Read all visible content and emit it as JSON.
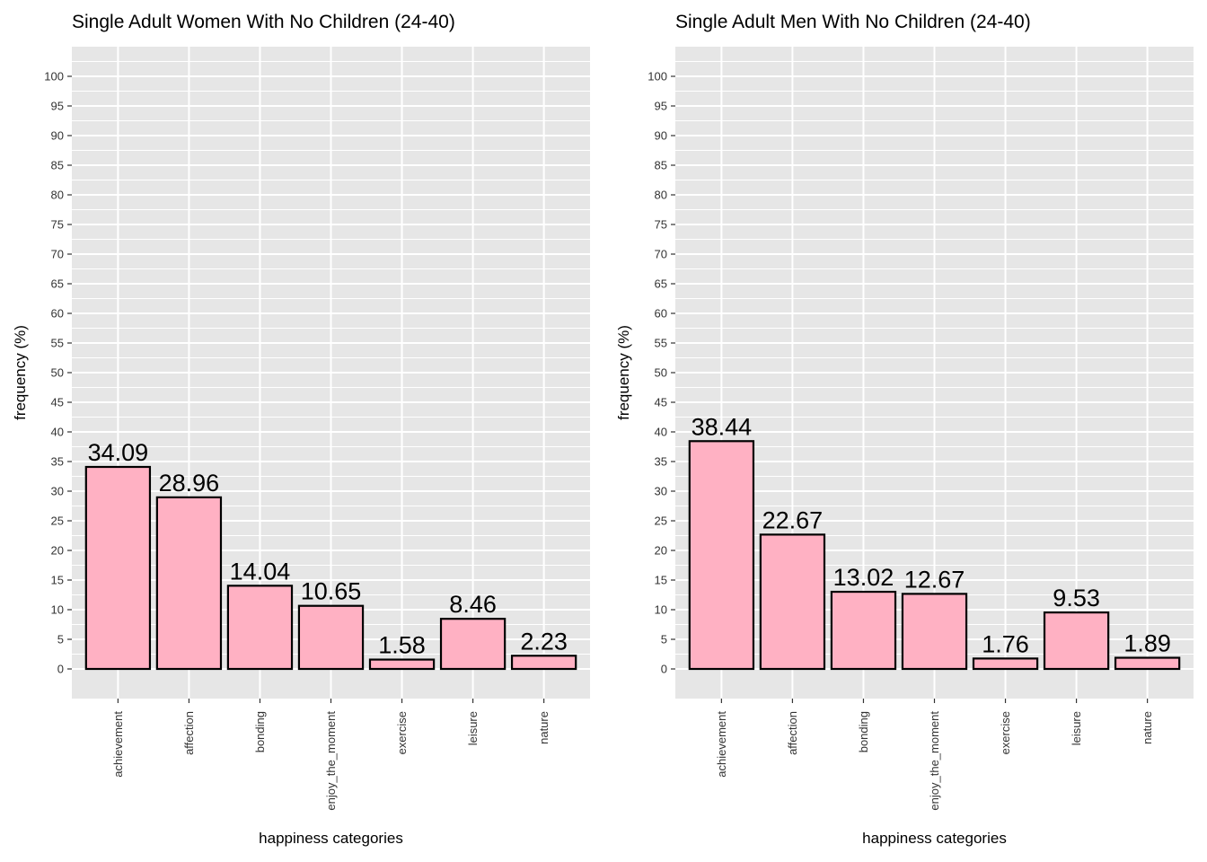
{
  "chart_data": [
    {
      "type": "bar",
      "title": "Single Adult Women With No Children (24-40)",
      "xlabel": "happiness categories",
      "ylabel": "frequency (%)",
      "categories": [
        "achievement",
        "affection",
        "bonding",
        "enjoy_the_moment",
        "exercise",
        "leisure",
        "nature"
      ],
      "values": [
        34.09,
        28.96,
        14.04,
        10.65,
        1.58,
        8.46,
        2.23
      ],
      "value_labels": [
        "34.09",
        "28.96",
        "14.04",
        "10.65",
        "1.58",
        "8.46",
        "2.23"
      ],
      "ylim": [
        -5,
        105
      ],
      "yticks": [
        "0",
        "5",
        "10",
        "15",
        "20",
        "25",
        "30",
        "35",
        "40",
        "45",
        "50",
        "55",
        "60",
        "65",
        "70",
        "75",
        "80",
        "85",
        "90",
        "95",
        "100"
      ],
      "grid": true,
      "legend": "none",
      "bar_fill": "#FFB1C3",
      "bar_stroke": "#000000",
      "panel_bg": "#E6E6E6",
      "grid_color": "#FFFFFF"
    },
    {
      "type": "bar",
      "title": "Single Adult Men With No Children (24-40)",
      "xlabel": "happiness categories",
      "ylabel": "frequency (%)",
      "categories": [
        "achievement",
        "affection",
        "bonding",
        "enjoy_the_moment",
        "exercise",
        "leisure",
        "nature"
      ],
      "values": [
        38.44,
        22.67,
        13.02,
        12.67,
        1.76,
        9.53,
        1.89
      ],
      "value_labels": [
        "38.44",
        "22.67",
        "13.02",
        "12.67",
        "1.76",
        "9.53",
        "1.89"
      ],
      "ylim": [
        -5,
        105
      ],
      "yticks": [
        "0",
        "5",
        "10",
        "15",
        "20",
        "25",
        "30",
        "35",
        "40",
        "45",
        "50",
        "55",
        "60",
        "65",
        "70",
        "75",
        "80",
        "85",
        "90",
        "95",
        "100"
      ],
      "grid": true,
      "legend": "none",
      "bar_fill": "#FFB1C3",
      "bar_stroke": "#000000",
      "panel_bg": "#E6E6E6",
      "grid_color": "#FFFFFF"
    }
  ]
}
